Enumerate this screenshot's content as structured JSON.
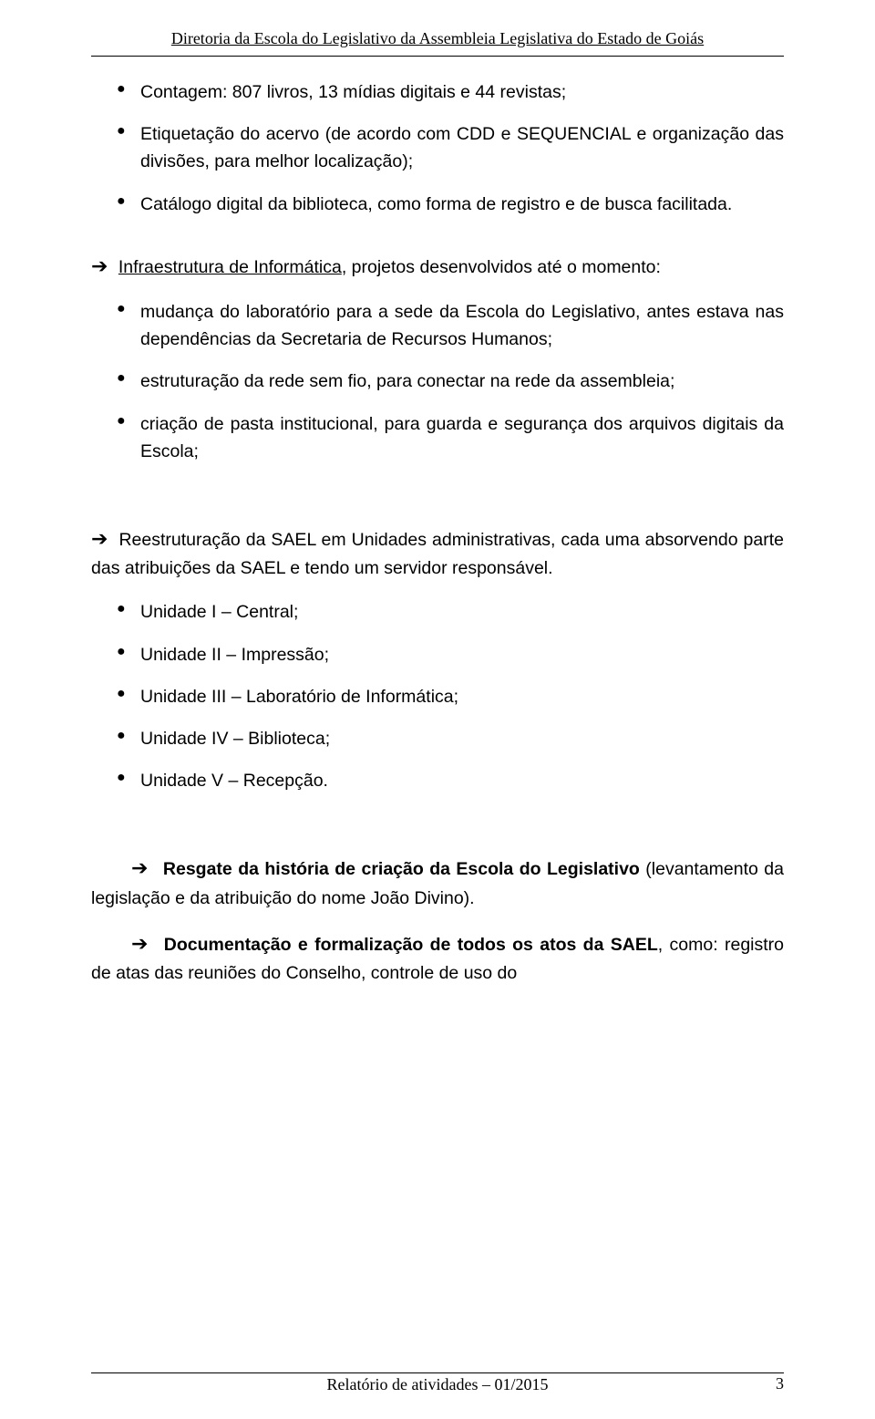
{
  "header": {
    "title": "Diretoria da Escola do Legislativo da Assembleia Legislativa do Estado de Goiás"
  },
  "content": {
    "bullets_top": [
      "Contagem: 807 livros, 13 mídias digitais e 44 revistas;",
      "Etiquetação do acervo (de acordo com CDD e SEQUENCIAL e organização das divisões, para melhor localização);",
      "Catálogo digital da biblioteca, como forma de registro e de busca facilitada."
    ],
    "infra_heading_underlined": "Infraestrutura de Informática",
    "infra_heading_rest": ", projetos desenvolvidos até o momento:",
    "bullets_infra": [
      "mudança do laboratório para a sede da Escola do Legislativo, antes estava nas dependências da Secretaria de Recursos Humanos;",
      "estruturação da rede sem fio, para conectar na rede da assembleia;",
      "criação de pasta institucional, para guarda e segurança dos arquivos digitais da Escola;"
    ],
    "sael_intro": "Reestruturação da SAEL em Unidades administrativas, cada uma absorvendo parte das atribuições da SAEL e tendo um servidor responsável.",
    "bullets_sael": [
      "Unidade I – Central;",
      "Unidade II – Impressão;",
      "Unidade III – Laboratório de Informática;",
      "Unidade IV – Biblioteca;",
      "Unidade V – Recepção."
    ],
    "resgate_bold": "Resgate da história de criação da Escola do Legislativo",
    "resgate_rest": " (levantamento da legislação e da atribuição do nome João Divino).",
    "doc_bold": "Documentação e formalização de todos os atos da SAEL",
    "doc_rest": ", como: registro de atas das reuniões do Conselho, controle de uso do"
  },
  "footer": {
    "text": "Relatório de atividades – 01/2015",
    "page_number": "3"
  }
}
